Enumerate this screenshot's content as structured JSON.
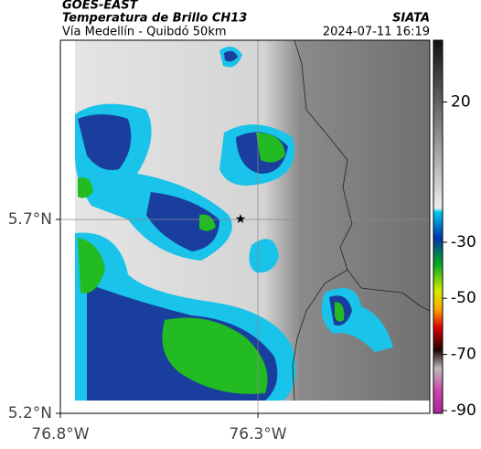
{
  "header": {
    "title": "GOES-EAST",
    "subtitle": "Temperatura de Brillo CH13",
    "route": "Vía Medellín - Quibdó 50km",
    "source": "SIATA",
    "timestamp": "2024-07-11 16:19"
  },
  "map": {
    "xlim": [
      -76.8,
      -75.865
    ],
    "ylim": [
      5.2,
      6.162
    ],
    "xticks": [
      {
        "value": -76.8,
        "label": "76.8°W"
      },
      {
        "value": -76.3,
        "label": "76.3°W"
      }
    ],
    "yticks": [
      {
        "value": 5.2,
        "label": "5.2°N"
      },
      {
        "value": 5.7,
        "label": "5.7°N"
      }
    ]
  },
  "colorbar": {
    "clim": [
      -91,
      42
    ],
    "ticks": [
      20,
      -30,
      -50,
      -70,
      -90
    ]
  }
}
